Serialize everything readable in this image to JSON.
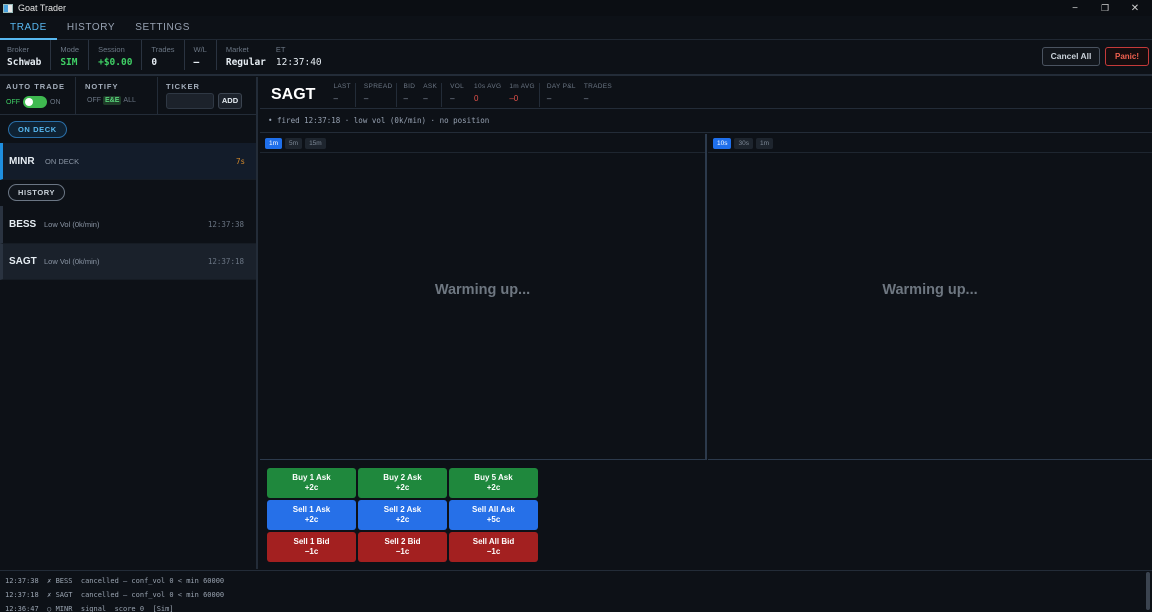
{
  "window": {
    "title": "Goat Trader",
    "minimize": "−",
    "restore": "❐",
    "close": "✕"
  },
  "tabs": [
    {
      "label": "TRADE",
      "active": true
    },
    {
      "label": "HISTORY",
      "active": false
    },
    {
      "label": "SETTINGS",
      "active": false
    }
  ],
  "status": {
    "broker_label": "Broker",
    "broker": "Schwab",
    "mode_label": "Mode",
    "mode": "SIM",
    "session_label": "Session",
    "session": "+$0.00",
    "trades_label": "Trades",
    "trades": "0",
    "wl_label": "W/L",
    "wl": "–",
    "market_label": "Market",
    "market": "Regular",
    "et_label": "ET",
    "et": "12:37:40"
  },
  "actions": {
    "cancel_all": "Cancel All",
    "panic": "Panic!"
  },
  "controls": {
    "auto_trade_label": "AUTO TRADE",
    "off": "OFF",
    "on": "ON",
    "notify_label": "NOTIFY",
    "notify_options": [
      "OFF",
      "E&E",
      "ALL"
    ],
    "notify_selected": "E&E",
    "ticker_label": "TICKER",
    "ticker_value": "",
    "add_label": "ADD"
  },
  "on_deck": {
    "pill": "ON DECK",
    "items": [
      {
        "symbol": "MINR",
        "status": "ON DECK",
        "age": "7s"
      }
    ]
  },
  "history": {
    "pill": "HISTORY",
    "items": [
      {
        "symbol": "BESS",
        "note": "Low Vol (0k/min)",
        "time": "12:37:38"
      },
      {
        "symbol": "SAGT",
        "note": "Low Vol (0k/min)",
        "time": "12:37:18"
      }
    ]
  },
  "detail": {
    "symbol": "SAGT",
    "fields": [
      {
        "label": "LAST",
        "value": "–"
      },
      {
        "label": "SPREAD",
        "value": "–"
      },
      {
        "label": "BID",
        "value": "–"
      },
      {
        "label": "ASK",
        "value": "–"
      },
      {
        "label": "VOL",
        "value": "–"
      },
      {
        "label": "10s AVG",
        "value": "0"
      },
      {
        "label": "1m AVG",
        "value": "–0"
      },
      {
        "label": "DAY P&L",
        "value": "–"
      },
      {
        "label": "TRADES",
        "value": "–"
      }
    ],
    "fired": "• fired 12:37:18  ·  low vol (0k/min)  ·  no position"
  },
  "charts": [
    {
      "timeframes": [
        "1m",
        "5m",
        "15m"
      ],
      "selected": "1m",
      "message": "Warming up..."
    },
    {
      "timeframes": [
        "10s",
        "30s",
        "1m"
      ],
      "selected": "10s",
      "message": "Warming up..."
    }
  ],
  "order_buttons": [
    {
      "label": "Buy 1 Ask",
      "offset": "+2c"
    },
    {
      "label": "Buy 2 Ask",
      "offset": "+2c"
    },
    {
      "label": "Buy 5 Ask",
      "offset": "+2c"
    },
    {
      "label": "Sell 1 Ask",
      "offset": "+2c"
    },
    {
      "label": "Sell 2 Ask",
      "offset": "+2c"
    },
    {
      "label": "Sell All Ask",
      "offset": "+5c"
    },
    {
      "label": "Sell 1 Bid",
      "offset": "−1c"
    },
    {
      "label": "Sell 2 Bid",
      "offset": "−1c"
    },
    {
      "label": "Sell All Bid",
      "offset": "−1c"
    }
  ],
  "log": [
    "12:37:38  ✗ BESS  cancelled — conf_vol 0 < min 60000",
    "12:37:18  ✗ SAGT  cancelled — conf_vol 0 < min 60000",
    "12:36:47  ○ MINR  signal  score 0  [Sim]"
  ]
}
